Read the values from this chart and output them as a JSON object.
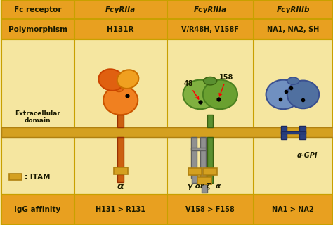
{
  "bg_color": "#f5e6a0",
  "header_bg": "#e8a020",
  "border_color": "#c8a000",
  "table_line_color": "#c8a020",
  "fig_width": 4.74,
  "fig_height": 3.2,
  "dpi": 100,
  "row_labels": [
    "Fc receptor",
    "Polymorphism",
    "Extracellular domain",
    "IgG affinity"
  ],
  "col_headers": [
    "FcγRIIa",
    "FcγRIIIa",
    "FcγRIIIb"
  ],
  "col_header_label": "Fc receptor",
  "polymorphisms": [
    "H131R",
    "V/R48H, V158F",
    "NA1, NA2, SH"
  ],
  "igg_affinity": [
    "H131 > R131",
    "V158 > F158",
    "NA1 > NA2"
  ],
  "orange_color": "#e87010",
  "orange_light": "#f0a030",
  "green_color": "#5a9030",
  "green_light": "#80b050",
  "blue_color": "#4060a0",
  "blue_light": "#6080c0",
  "gray_color": "#909090",
  "gold_color": "#d4a020",
  "navy_color": "#2a4080",
  "label_alpha": "α",
  "label_gamma_zeta": "γ or ζ  α",
  "label_alpha_gpi": "α-GPI",
  "itam_label": ": ITAM",
  "annotation_48": "48",
  "annotation_158": "158"
}
